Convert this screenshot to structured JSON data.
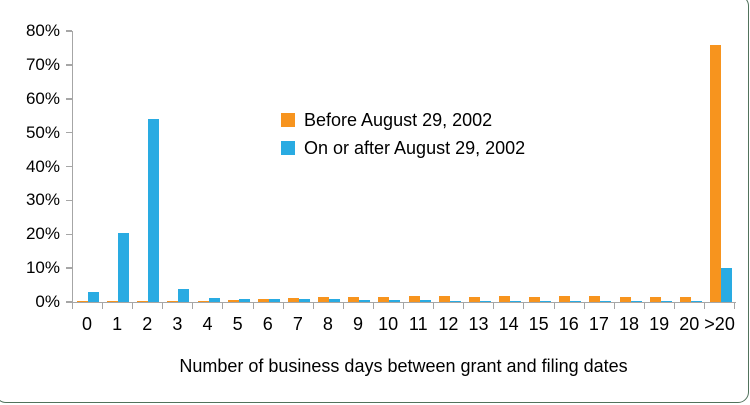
{
  "frame": {
    "border_color": "#51725c"
  },
  "axis": {
    "line_color": "#a6a6a6",
    "text_color": "#000000"
  },
  "chart_data": {
    "type": "bar",
    "title": "",
    "xlabel": "Number of business days between grant and filing dates",
    "ylabel": "",
    "ylim": [
      0,
      80
    ],
    "grid": false,
    "legend_position": "inside-top-center",
    "y_ticks": [
      "0%",
      "10%",
      "20%",
      "30%",
      "40%",
      "50%",
      "60%",
      "70%",
      "80%"
    ],
    "categories": [
      "0",
      "1",
      "2",
      "3",
      "4",
      "5",
      "6",
      "7",
      "8",
      "9",
      "10",
      "11",
      "12",
      "13",
      "14",
      "15",
      "16",
      "17",
      "18",
      "19",
      "20",
      ">20"
    ],
    "series": [
      {
        "name": "Before August 29, 2002",
        "color": "#F7941E",
        "values": [
          0.2,
          0.2,
          0.3,
          0.3,
          0.4,
          0.6,
          1.0,
          1.3,
          1.4,
          1.5,
          1.6,
          1.7,
          1.7,
          1.6,
          1.7,
          1.6,
          1.7,
          1.8,
          1.5,
          1.5,
          1.4,
          76.0
        ]
      },
      {
        "name": "On or after August 29, 2002",
        "color": "#29ABE2",
        "values": [
          3.0,
          20.5,
          54.0,
          3.7,
          1.1,
          1.0,
          0.9,
          0.9,
          0.8,
          0.6,
          0.5,
          0.5,
          0.4,
          0.4,
          0.4,
          0.3,
          0.3,
          0.3,
          0.3,
          0.2,
          0.2,
          10.0
        ]
      }
    ]
  }
}
